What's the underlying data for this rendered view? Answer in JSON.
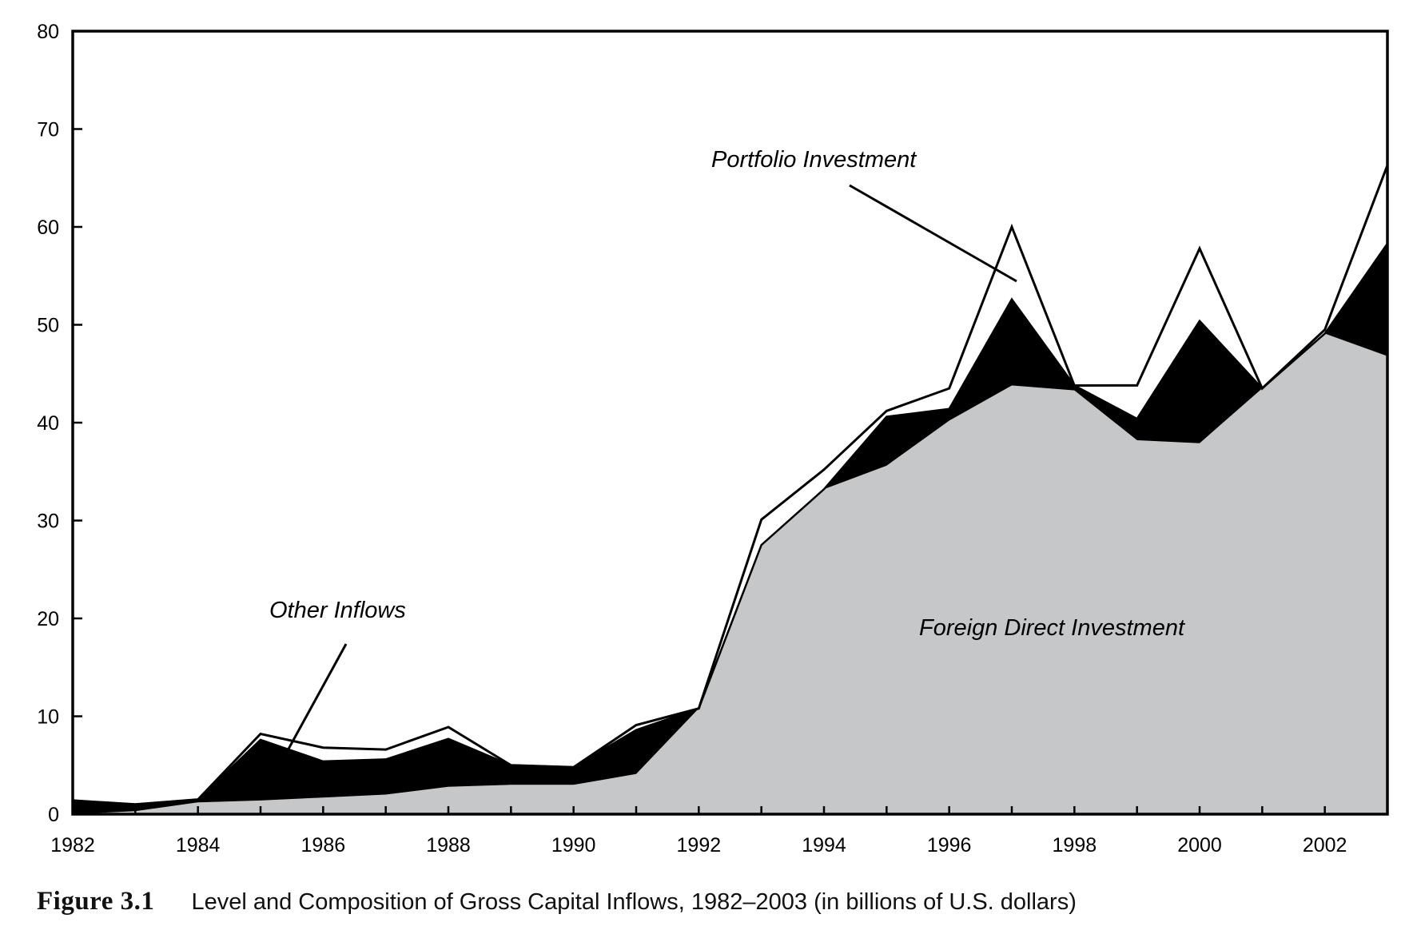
{
  "chart_data": {
    "type": "area",
    "stacked": true,
    "x": [
      1982,
      1983,
      1984,
      1985,
      1986,
      1987,
      1988,
      1989,
      1990,
      1991,
      1992,
      1993,
      1994,
      1995,
      1996,
      1997,
      1998,
      1999,
      2000,
      2001,
      2002,
      2003
    ],
    "series": [
      {
        "name": "Foreign Direct Investment",
        "fill": "#c6c7c9",
        "values": [
          0.0,
          0.3,
          1.2,
          1.4,
          1.7,
          2.0,
          2.8,
          3.0,
          3.0,
          4.1,
          10.8,
          27.5,
          33.2,
          35.6,
          40.2,
          43.8,
          43.3,
          38.2,
          37.9,
          43.5,
          49.1,
          46.8
        ]
      },
      {
        "name": "Other Inflows",
        "fill": "#000000",
        "values": [
          1.4,
          0.7,
          0.3,
          6.2,
          3.7,
          3.6,
          4.9,
          2.0,
          1.8,
          4.5,
          0.0,
          0.0,
          0.0,
          5.0,
          1.2,
          8.8,
          0.5,
          2.2,
          12.5,
          0.0,
          0.0,
          11.5
        ]
      },
      {
        "name": "Portfolio Investment",
        "fill": "#ffffff",
        "values": [
          0.0,
          0.0,
          0.0,
          0.6,
          1.4,
          1.0,
          1.2,
          0.0,
          0.0,
          0.5,
          0.0,
          2.6,
          2.0,
          0.6,
          2.1,
          7.4,
          0.0,
          3.4,
          7.4,
          0.0,
          0.4,
          8.0
        ]
      }
    ],
    "ylim": [
      0,
      80
    ],
    "xlim": [
      1982,
      2003
    ],
    "yticks": [
      0,
      10,
      20,
      30,
      40,
      50,
      60,
      70,
      80
    ],
    "xticks": [
      1982,
      1984,
      1986,
      1988,
      1990,
      1992,
      1994,
      1996,
      1998,
      2000,
      2002
    ],
    "annotations": [
      "Portfolio Investment",
      "Other Inflows",
      "Foreign Direct Investment"
    ],
    "grid": false,
    "legend": "none"
  },
  "caption": {
    "figure_label": "Figure 3.1",
    "text": "Level and Composition of Gross Capital Inflows, 1982–2003 (in billions of U.S. dollars)"
  }
}
